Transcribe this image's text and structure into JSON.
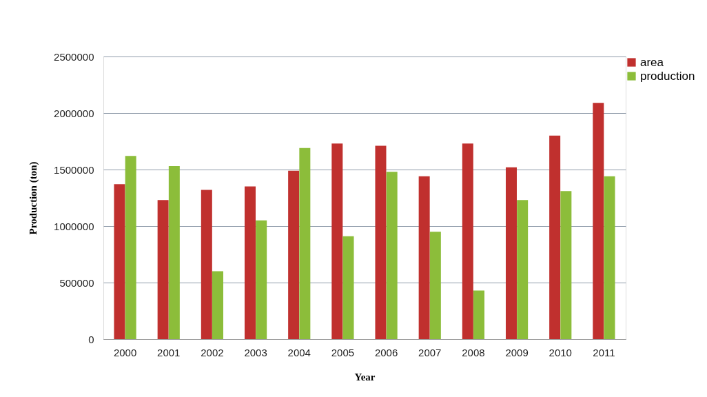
{
  "chart_data": {
    "type": "bar",
    "xlabel": "Year",
    "ylabel": "Production  (ton)",
    "categories": [
      "2000",
      "2001",
      "2002",
      "2003",
      "2004",
      "2005",
      "2006",
      "2007",
      "2008",
      "2009",
      "2010",
      "2011"
    ],
    "series": [
      {
        "name": "area",
        "color": "#c0302e",
        "values": [
          1370000,
          1230000,
          1320000,
          1350000,
          1490000,
          1730000,
          1710000,
          1440000,
          1730000,
          1520000,
          1800000,
          2090000
        ]
      },
      {
        "name": "production",
        "color": "#8cbd3a",
        "values": [
          1620000,
          1530000,
          600000,
          1050000,
          1690000,
          910000,
          1480000,
          950000,
          430000,
          1230000,
          1310000,
          1440000
        ]
      }
    ],
    "ylim": [
      0,
      2500000
    ],
    "yticks": [
      0,
      500000,
      1000000,
      1500000,
      2000000,
      2500000
    ],
    "grid": "y",
    "legend": "right"
  }
}
